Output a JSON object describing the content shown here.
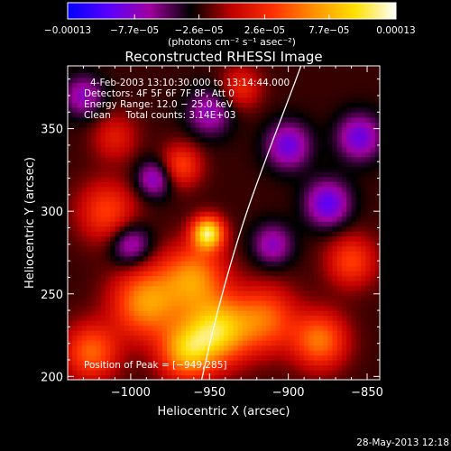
{
  "chart_data": {
    "type": "heatmap",
    "title": "Reconstructed RHESSI Image",
    "xlabel": "Heliocentric X (arcsec)",
    "ylabel": "Heliocentric Y (arcsec)",
    "xlim": [
      -1040,
      -842
    ],
    "ylim": [
      198,
      388
    ],
    "x_ticks": [
      {
        "value": -1000,
        "label": "−1000"
      },
      {
        "value": -950,
        "label": "−950"
      },
      {
        "value": -900,
        "label": "−900"
      },
      {
        "value": -850,
        "label": "−850"
      }
    ],
    "y_ticks": [
      {
        "value": 200,
        "label": "200"
      },
      {
        "value": 250,
        "label": "250"
      },
      {
        "value": 300,
        "label": "300"
      },
      {
        "value": 350,
        "label": "350"
      }
    ],
    "colorbar": {
      "min": -0.00013,
      "max": 0.00013,
      "unit_label": "(photons cm⁻² s⁻¹ asec⁻²)",
      "ticks": [
        {
          "value": -0.00013,
          "label": "−0.00013"
        },
        {
          "value": -7.7e-05,
          "label": "−7.7e−05"
        },
        {
          "value": -2.6e-05,
          "label": "−2.6e−05"
        },
        {
          "value": 2.6e-05,
          "label": "2.6e−05"
        },
        {
          "value": 7.7e-05,
          "label": "7.7e−05"
        },
        {
          "value": 0.00013,
          "label": "0.00013"
        }
      ],
      "colors": [
        "#0000ff",
        "#5a00ff",
        "#a000a0",
        "#000000",
        "#c00000",
        "#ff3000",
        "#ff9000",
        "#ffe000",
        "#ffffff"
      ]
    },
    "info_lines": [
      "4-Feb-2003 13:10:30.000 to 13:14:44.000",
      "Detectors: 4F 5F 6F 7F 8F, Att 0",
      "Energy Range: 12.0 − 25.0 keV",
      "Clean     Total counts: 3.14E+03"
    ],
    "peak_label": "Position of Peak = [−949,285]",
    "peak": [
      -949,
      285
    ],
    "limb_curve": [
      [
        -955,
        198
      ],
      [
        -945,
        240
      ],
      [
        -930,
        290
      ],
      [
        -915,
        330
      ],
      [
        -895,
        380
      ],
      [
        -892,
        388
      ]
    ],
    "sources": [
      {
        "x": -951,
        "y": 287,
        "sigma": 7,
        "amp": 1.0
      },
      {
        "x": -960,
        "y": 260,
        "sigma": 14,
        "amp": 0.65
      },
      {
        "x": -990,
        "y": 245,
        "sigma": 15,
        "amp": 0.7
      },
      {
        "x": -945,
        "y": 228,
        "sigma": 14,
        "amp": 0.85
      },
      {
        "x": -965,
        "y": 215,
        "sigma": 12,
        "amp": 0.7
      },
      {
        "x": -915,
        "y": 235,
        "sigma": 14,
        "amp": 0.55
      },
      {
        "x": -880,
        "y": 222,
        "sigma": 12,
        "amp": 0.6
      },
      {
        "x": -860,
        "y": 270,
        "sigma": 11,
        "amp": 0.45
      },
      {
        "x": -1015,
        "y": 300,
        "sigma": 13,
        "amp": 0.45
      },
      {
        "x": -1010,
        "y": 345,
        "sigma": 10,
        "amp": 0.3
      },
      {
        "x": -968,
        "y": 328,
        "sigma": 9,
        "amp": 0.45
      },
      {
        "x": -930,
        "y": 375,
        "sigma": 9,
        "amp": 0.35
      },
      {
        "x": -1025,
        "y": 215,
        "sigma": 12,
        "amp": 0.55
      },
      {
        "x": -900,
        "y": 340,
        "sigma": 10,
        "amp": -0.5
      },
      {
        "x": -875,
        "y": 305,
        "sigma": 10,
        "amp": -0.55
      },
      {
        "x": -1000,
        "y": 280,
        "sigma": 9,
        "amp": -0.45
      },
      {
        "x": -950,
        "y": 360,
        "sigma": 10,
        "amp": -0.4
      },
      {
        "x": -1030,
        "y": 370,
        "sigma": 9,
        "amp": -0.4
      },
      {
        "x": -985,
        "y": 320,
        "sigma": 8,
        "amp": -0.45
      },
      {
        "x": -855,
        "y": 345,
        "sigma": 10,
        "amp": -0.5
      },
      {
        "x": -910,
        "y": 280,
        "sigma": 9,
        "amp": -0.4
      }
    ]
  },
  "footer": {
    "timestamp": "28-May-2013 12:18"
  }
}
